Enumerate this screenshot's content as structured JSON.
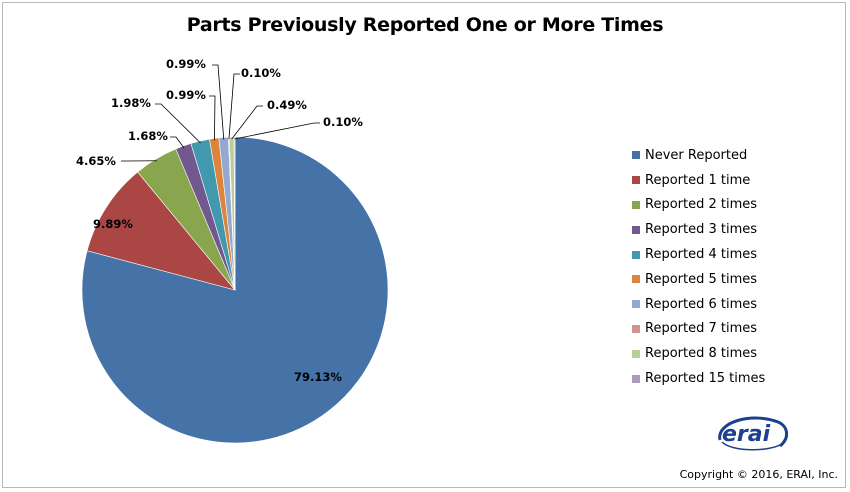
{
  "chart_data": {
    "type": "pie",
    "title": "Parts Previously Reported One or More Times",
    "categories": [
      "Never Reported",
      "Reported 1 time",
      "Reported 2 times",
      "Reported 3 times",
      "Reported 4 times",
      "Reported 5 times",
      "Reported 6 times",
      "Reported 7 times",
      "Reported 8 times",
      "Reported 15 times"
    ],
    "values": [
      79.13,
      9.89,
      4.65,
      1.68,
      1.98,
      0.99,
      0.99,
      0.1,
      0.49,
      0.1
    ],
    "labels": [
      "79.13%",
      "9.89%",
      "4.65%",
      "1.68%",
      "1.98%",
      "0.99%",
      "0.99%",
      "0.10%",
      "0.49%",
      "0.10%"
    ],
    "colors": [
      "#4572a7",
      "#aa4643",
      "#89a54e",
      "#71588f",
      "#4198af",
      "#db843d",
      "#93a9cf",
      "#d19392",
      "#b9cd96",
      "#a99bbd"
    ],
    "legend_position": "right"
  },
  "logo": {
    "text": "erai"
  },
  "footer": {
    "copyright": "Copyright © 2016, ERAI, Inc."
  }
}
